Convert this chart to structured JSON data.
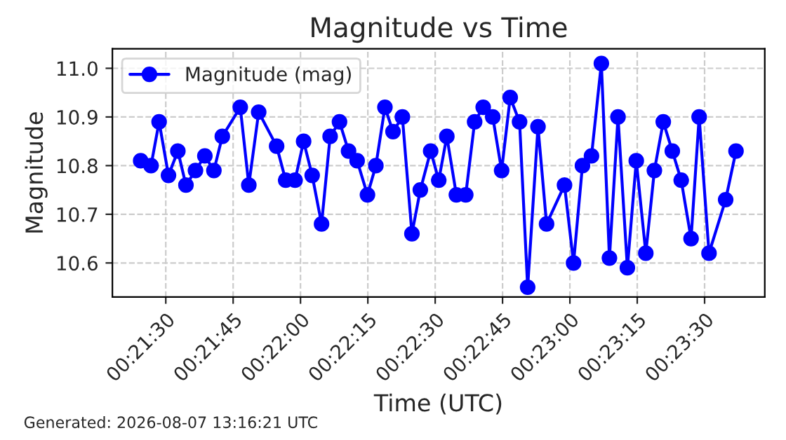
{
  "chart_data": {
    "type": "line",
    "title": "Magnitude vs Time",
    "xlabel": "Time (UTC)",
    "ylabel": "Magnitude",
    "annotations": [
      "Generated: 2026-08-07 13:16:21 UTC"
    ],
    "x": [
      0.35678,
      0.35742,
      0.35792,
      0.3585,
      0.35908,
      0.35958,
      0.36017,
      0.36075,
      0.36131,
      0.36183,
      0.36294,
      0.36347,
      0.36408,
      0.36519,
      0.36575,
      0.36633,
      0.36686,
      0.36739,
      0.36797,
      0.3685,
      0.36908,
      0.36964,
      0.37017,
      0.37081,
      0.37133,
      0.37189,
      0.37239,
      0.37297,
      0.37356,
      0.37408,
      0.37472,
      0.37522,
      0.37572,
      0.37631,
      0.37689,
      0.37744,
      0.37797,
      0.37856,
      0.37911,
      0.37964,
      0.38022,
      0.38072,
      0.38136,
      0.38189,
      0.383,
      0.38356,
      0.38411,
      0.38467,
      0.38528,
      0.38578,
      0.38631,
      0.38689,
      0.38744,
      0.38803,
      0.38856,
      0.38911,
      0.38967,
      0.39022,
      0.39083,
      0.39133,
      0.39194,
      0.39297,
      0.39361
    ],
    "series": [
      {
        "name": "Magnitude (mag)",
        "color": "#0000ff",
        "values": [
          10.81,
          10.8,
          10.89,
          10.78,
          10.83,
          10.76,
          10.79,
          10.82,
          10.79,
          10.86,
          10.92,
          10.76,
          10.91,
          10.84,
          10.77,
          10.77,
          10.85,
          10.78,
          10.68,
          10.86,
          10.89,
          10.83,
          10.81,
          10.74,
          10.8,
          10.92,
          10.87,
          10.9,
          10.66,
          10.75,
          10.83,
          10.77,
          10.86,
          10.74,
          10.74,
          10.89,
          10.92,
          10.9,
          10.79,
          10.94,
          10.89,
          10.55,
          10.88,
          10.68,
          10.76,
          10.6,
          10.8,
          10.82,
          11.01,
          10.61,
          10.9,
          10.59,
          10.81,
          10.62,
          10.79,
          10.89,
          10.83,
          10.77,
          10.65,
          10.9,
          10.62,
          10.73,
          10.83
        ]
      }
    ],
    "xlim": [
      0.35503,
      0.39539
    ],
    "xticks": [
      {
        "value": 0.358333,
        "label": "00:21:30"
      },
      {
        "value": 0.3625,
        "label": "00:21:45"
      },
      {
        "value": 0.366667,
        "label": "00:22:00"
      },
      {
        "value": 0.370833,
        "label": "00:22:15"
      },
      {
        "value": 0.375,
        "label": "00:22:30"
      },
      {
        "value": 0.379167,
        "label": "00:22:45"
      },
      {
        "value": 0.383333,
        "label": "00:23:00"
      },
      {
        "value": 0.3875,
        "label": "00:23:15"
      },
      {
        "value": 0.391667,
        "label": "00:23:30"
      }
    ],
    "ylim": [
      10.53,
      11.04
    ],
    "yticks": [
      {
        "value": 10.6,
        "label": "10.6"
      },
      {
        "value": 10.7,
        "label": "10.7"
      },
      {
        "value": 10.8,
        "label": "10.8"
      },
      {
        "value": 10.9,
        "label": "10.9"
      },
      {
        "value": 11.0,
        "label": "11.0"
      }
    ],
    "grid": true,
    "legend": "top left",
    "marker": "circle",
    "line_style": "solid"
  }
}
